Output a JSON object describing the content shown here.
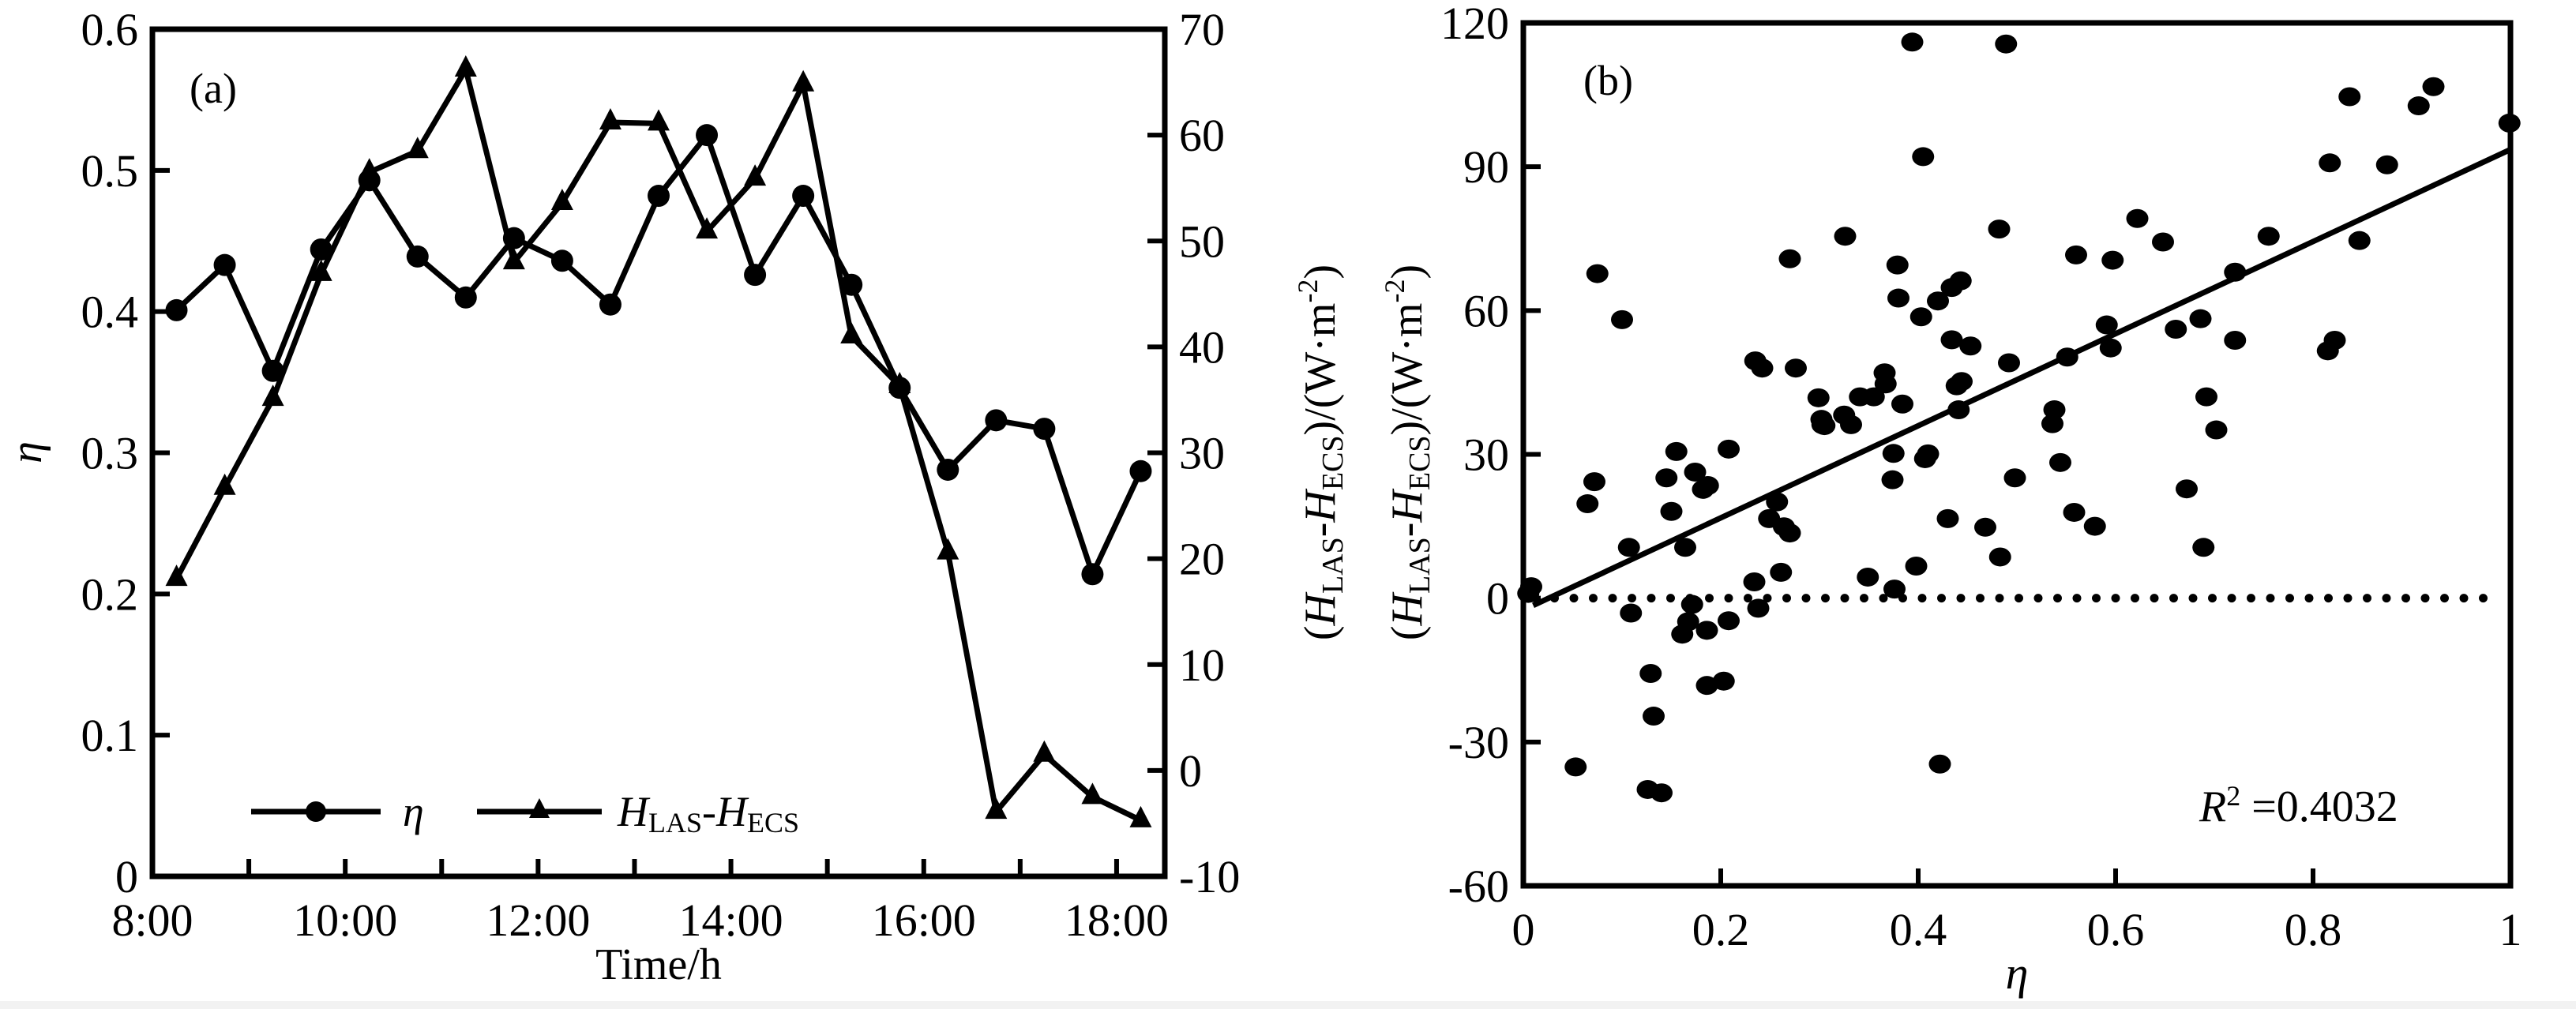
{
  "chart_data": [
    {
      "type": "line",
      "panel_label": "(a)",
      "xlabel": "Time/h",
      "ylabel_left": "η",
      "ylabel_right": {
        "H": "H",
        "sub1": "LAS",
        "dash": "-",
        "sub2": "ECS",
        "unit": ")/(W·m",
        "sup": "-2",
        "close": ")"
      },
      "x_ticks": [
        "8:00",
        "10:00",
        "12:00",
        "14:00",
        "16:00",
        "18:00"
      ],
      "x_range_hours": [
        8,
        18.5
      ],
      "y_left_ticks": [
        "0",
        "0.1",
        "0.2",
        "0.3",
        "0.4",
        "0.5",
        "0.6"
      ],
      "y_left_range": [
        0,
        0.6
      ],
      "y_right_ticks": [
        "-10",
        "0",
        "10",
        "20",
        "30",
        "40",
        "50",
        "60",
        "70"
      ],
      "y_right_range": [
        -10,
        70
      ],
      "legend": {
        "placement": "bottom-left",
        "entries": [
          {
            "name": "η",
            "marker": "circle"
          },
          {
            "name": "H",
            "sub1": "LAS",
            "dash": "-",
            "sub2": "ECS",
            "marker": "triangle"
          }
        ]
      },
      "x_hours": [
        8.25,
        8.75,
        9.25,
        9.75,
        10.25,
        10.75,
        11.25,
        11.75,
        12.25,
        12.75,
        13.25,
        13.75,
        14.25,
        14.75,
        15.25,
        15.75,
        16.25,
        16.75,
        17.25,
        17.75,
        18.25
      ],
      "series": [
        {
          "name": "η",
          "axis": "left",
          "marker": "circle",
          "values": [
            0.401,
            0.433,
            0.358,
            0.444,
            0.493,
            0.439,
            0.41,
            0.452,
            0.436,
            0.405,
            0.482,
            0.525,
            0.426,
            0.482,
            0.419,
            0.346,
            0.288,
            0.323,
            0.317,
            0.214,
            0.287
          ]
        },
        {
          "name": "HLAS-HECS",
          "axis": "right",
          "marker": "triangle",
          "values": [
            18.1,
            26.7,
            35.1,
            46.9,
            56.5,
            58.5,
            66.2,
            48.0,
            53.6,
            61.2,
            61.1,
            50.9,
            55.9,
            64.8,
            41.0,
            36.3,
            20.6,
            -3.9,
            1.5,
            -2.5,
            -4.7
          ]
        }
      ]
    },
    {
      "type": "scatter",
      "panel_label": "(b)",
      "xlabel": "η",
      "ylabel": {
        "H": "H",
        "sub1": "LAS",
        "dash": "-",
        "sub2": "ECS",
        "unit": ")/(W·m",
        "sup": "-2",
        "close": ")"
      },
      "x_ticks": [
        "0",
        "0.2",
        "0.4",
        "0.6",
        "0.8",
        "1"
      ],
      "x_range": [
        0,
        1
      ],
      "y_ticks": [
        "-60",
        "-30",
        "0",
        "30",
        "60",
        "90",
        "120"
      ],
      "y_range": [
        -60,
        120
      ],
      "annotation": {
        "R": "R",
        "sup": "2",
        "text": " =0.4032"
      },
      "zero_line": {
        "y": 0,
        "style": "dotted"
      },
      "fit_line": {
        "x": [
          0.01,
          1.0
        ],
        "y": [
          -1.5,
          93.6
        ]
      },
      "points": [
        [
          0.008,
          2.4
        ],
        [
          0.005,
          1.0
        ],
        [
          0.053,
          -35.2
        ],
        [
          0.065,
          19.7
        ],
        [
          0.072,
          24.3
        ],
        [
          0.075,
          67.7
        ],
        [
          0.1,
          58.1
        ],
        [
          0.107,
          10.6
        ],
        [
          0.109,
          -3.1
        ],
        [
          0.126,
          -39.9
        ],
        [
          0.129,
          -15.7
        ],
        [
          0.132,
          -24.6
        ],
        [
          0.14,
          -40.6
        ],
        [
          0.145,
          25.1
        ],
        [
          0.15,
          18.1
        ],
        [
          0.155,
          30.6
        ],
        [
          0.161,
          -7.5
        ],
        [
          0.164,
          10.6
        ],
        [
          0.167,
          -4.9
        ],
        [
          0.171,
          -1.3
        ],
        [
          0.174,
          26.3
        ],
        [
          0.182,
          22.7
        ],
        [
          0.186,
          -6.7
        ],
        [
          0.186,
          -18.2
        ],
        [
          0.187,
          23.5
        ],
        [
          0.203,
          -17.3
        ],
        [
          0.208,
          -4.7
        ],
        [
          0.208,
          31.1
        ],
        [
          0.234,
          3.4
        ],
        [
          0.235,
          49.5
        ],
        [
          0.238,
          -2.1
        ],
        [
          0.242,
          48.0
        ],
        [
          0.249,
          16.6
        ],
        [
          0.257,
          20.1
        ],
        [
          0.261,
          5.4
        ],
        [
          0.264,
          14.9
        ],
        [
          0.27,
          13.6
        ],
        [
          0.27,
          70.8
        ],
        [
          0.276,
          48.0
        ],
        [
          0.299,
          41.8
        ],
        [
          0.302,
          37.3
        ],
        [
          0.303,
          36.2
        ],
        [
          0.305,
          36.0
        ],
        [
          0.325,
          38.2
        ],
        [
          0.326,
          75.5
        ],
        [
          0.332,
          36.2
        ],
        [
          0.341,
          42.0
        ],
        [
          0.349,
          4.4
        ],
        [
          0.355,
          42.0
        ],
        [
          0.366,
          47.0
        ],
        [
          0.367,
          44.7
        ],
        [
          0.374,
          24.7
        ],
        [
          0.375,
          30.2
        ],
        [
          0.376,
          1.9
        ],
        [
          0.379,
          69.5
        ],
        [
          0.38,
          62.6
        ],
        [
          0.384,
          40.5
        ],
        [
          0.394,
          116.0
        ],
        [
          0.398,
          6.7
        ],
        [
          0.403,
          58.7
        ],
        [
          0.405,
          92.1
        ],
        [
          0.407,
          29.1
        ],
        [
          0.41,
          30.1
        ],
        [
          0.42,
          62.0
        ],
        [
          0.422,
          -34.6
        ],
        [
          0.43,
          16.6
        ],
        [
          0.434,
          53.9
        ],
        [
          0.434,
          64.8
        ],
        [
          0.439,
          44.3
        ],
        [
          0.441,
          39.3
        ],
        [
          0.443,
          66.2
        ],
        [
          0.444,
          45.2
        ],
        [
          0.453,
          52.6
        ],
        [
          0.468,
          14.8
        ],
        [
          0.482,
          77.0
        ],
        [
          0.483,
          8.6
        ],
        [
          0.489,
          115.6
        ],
        [
          0.492,
          49.1
        ],
        [
          0.498,
          25.1
        ],
        [
          0.536,
          36.4
        ],
        [
          0.538,
          39.3
        ],
        [
          0.544,
          28.3
        ],
        [
          0.551,
          50.3
        ],
        [
          0.558,
          17.9
        ],
        [
          0.56,
          71.6
        ],
        [
          0.579,
          15.0
        ],
        [
          0.591,
          57.0
        ],
        [
          0.595,
          52.2
        ],
        [
          0.597,
          70.5
        ],
        [
          0.622,
          79.2
        ],
        [
          0.648,
          74.3
        ],
        [
          0.661,
          56.1
        ],
        [
          0.672,
          22.8
        ],
        [
          0.686,
          58.3
        ],
        [
          0.689,
          10.6
        ],
        [
          0.692,
          42.0
        ],
        [
          0.702,
          35.1
        ],
        [
          0.721,
          68.0
        ],
        [
          0.721,
          53.8
        ],
        [
          0.755,
          75.5
        ],
        [
          0.815,
          51.6
        ],
        [
          0.817,
          90.8
        ],
        [
          0.822,
          53.8
        ],
        [
          0.837,
          104.6
        ],
        [
          0.847,
          74.6
        ],
        [
          0.875,
          90.4
        ],
        [
          0.907,
          102.7
        ],
        [
          0.922,
          106.7
        ],
        [
          0.999,
          99.1
        ]
      ]
    }
  ],
  "colors": {
    "ink": "#000000",
    "background": "#ffffff",
    "strip": "#f2f2f2"
  }
}
